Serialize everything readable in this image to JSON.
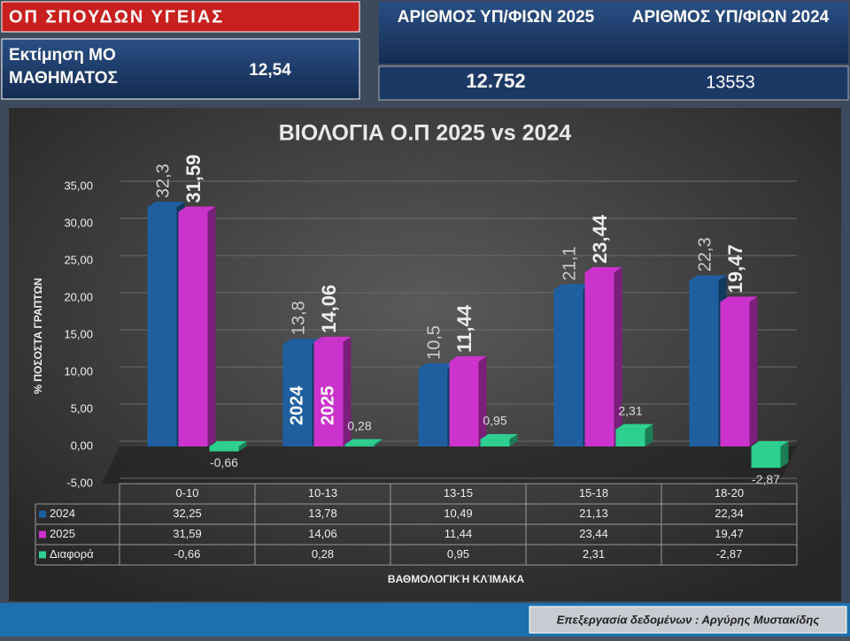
{
  "header": {
    "program": "ΟΠ ΣΠΟΥΔΩΝ ΥΓΕΙΑΣ",
    "estimate_label": "Εκτίμηση ΜΟ ΜΑΘΗΜΑΤΟΣ",
    "estimate_value": "12,54",
    "count_2025_label": "ΑΡΙΘΜΟΣ ΥΠ/ΦΙΩΝ 2025",
    "count_2024_label": "ΑΡΙΘΜΟΣ ΥΠ/ΦΙΩΝ 2024",
    "count_2025": "12.752",
    "count_2024": "13553"
  },
  "chart_data": {
    "type": "bar",
    "title": "ΒΙΟΛΟΓΙΑ Ο.Π 2025 vs 2024",
    "y_label": "% ΠΟΣΟΣΤΑ ΓΡΑΠΤΩΝ",
    "x_label": "ΒΑΘΜΟΛΟΓΙΚΉ ΚΛΊΜΑΚΑ",
    "categories": [
      "0-10",
      "10-13",
      "13-15",
      "15-18",
      "18-20"
    ],
    "series": [
      {
        "name": "2024",
        "color": "#1f5fa0",
        "values": [
          32.25,
          13.78,
          10.49,
          21.13,
          22.34
        ],
        "value_labels": [
          "32,3",
          "13,8",
          "10,5",
          "21,1",
          "22,3"
        ],
        "table_labels": [
          "32,25",
          "13,78",
          "10,49",
          "21,13",
          "22,34"
        ]
      },
      {
        "name": "2025",
        "color": "#cc33cc",
        "values": [
          31.59,
          14.06,
          11.44,
          23.44,
          19.47
        ],
        "value_labels": [
          "31,59",
          "14,06",
          "11,44",
          "23,44",
          "19,47"
        ],
        "table_labels": [
          "31,59",
          "14,06",
          "11,44",
          "23,44",
          "19,47"
        ]
      },
      {
        "name": "Διαφορά",
        "color": "#2ecf8f",
        "values": [
          -0.66,
          0.28,
          0.95,
          2.31,
          -2.87
        ],
        "value_labels": [
          "-0,66",
          "0,28",
          "0,95",
          "2,31",
          "-2,87"
        ],
        "table_labels": [
          "-0,66",
          "0,28",
          "0,95",
          "2,31",
          "-2,87"
        ]
      }
    ],
    "ylim": [
      -5,
      35
    ],
    "yticks": [
      {
        "value": -5,
        "label": "-5,00"
      },
      {
        "value": 0,
        "label": "0,00"
      },
      {
        "value": 5,
        "label": "5,00"
      },
      {
        "value": 10,
        "label": "10,00"
      },
      {
        "value": 15,
        "label": "15,00"
      },
      {
        "value": 20,
        "label": "20,00"
      },
      {
        "value": 25,
        "label": "25,00"
      },
      {
        "value": 30,
        "label": "30,00"
      },
      {
        "value": 35,
        "label": "35,00"
      }
    ],
    "grid": true
  },
  "footer": "Επεξεργασία δεδομένων : Αργύρης Μυστακίδης"
}
